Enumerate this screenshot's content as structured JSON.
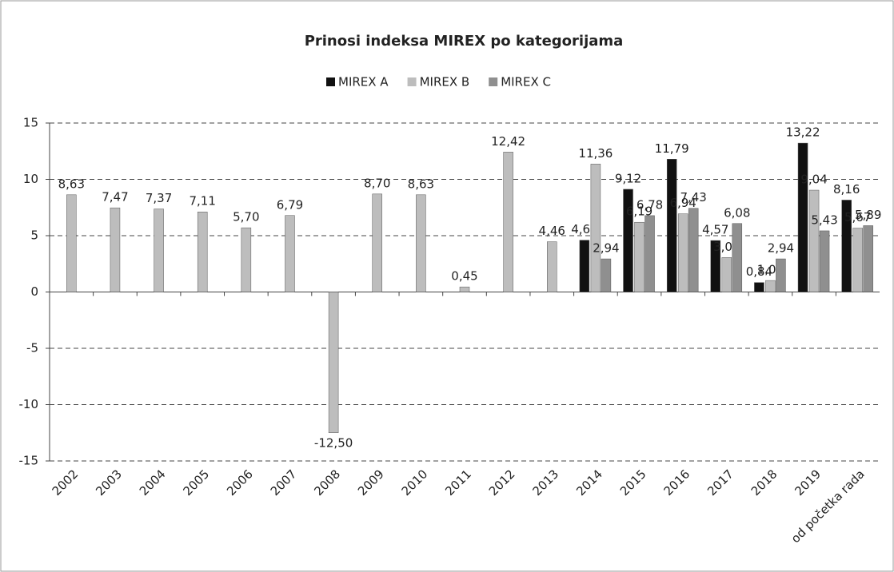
{
  "chart_data": {
    "type": "bar",
    "title": "Prinosi indeksa MIREX po kategorijama",
    "categories": [
      "2002",
      "2003",
      "2004",
      "2005",
      "2006",
      "2007",
      "2008",
      "2009",
      "2010",
      "2011",
      "2012",
      "2013",
      "2014",
      "2015",
      "2016",
      "2017",
      "2018",
      "2019",
      "od početka rada"
    ],
    "series": [
      {
        "name": "MIREX A",
        "color": "#111111",
        "values": [
          null,
          null,
          null,
          null,
          null,
          null,
          null,
          null,
          null,
          null,
          null,
          null,
          4.6,
          9.12,
          11.79,
          4.57,
          0.84,
          13.22,
          8.16
        ],
        "value_labels": [
          null,
          null,
          null,
          null,
          null,
          null,
          null,
          null,
          null,
          null,
          null,
          null,
          "4,60",
          "9,12",
          "11,79",
          "4,57",
          "0,84",
          "13,22",
          "8,16"
        ]
      },
      {
        "name": "MIREX B",
        "color": "#bdbdbd",
        "values": [
          8.63,
          7.47,
          7.37,
          7.11,
          5.7,
          6.79,
          -12.5,
          8.7,
          8.63,
          0.45,
          12.42,
          4.46,
          11.36,
          6.19,
          6.94,
          3.06,
          1.02,
          9.04,
          5.67
        ],
        "value_labels": [
          "8,63",
          "7,47",
          "7,37",
          "7,11",
          "5,70",
          "6,79",
          "-12,50",
          "8,70",
          "8,63",
          "0,45",
          "12,42",
          "4,46",
          "11,36",
          "6,19",
          "6,94",
          "3,06",
          "1,02",
          "9,04",
          "5,67"
        ]
      },
      {
        "name": "MIREX C",
        "color": "#8f8f8f",
        "values": [
          null,
          null,
          null,
          null,
          null,
          null,
          null,
          null,
          null,
          null,
          null,
          null,
          2.94,
          6.78,
          7.43,
          6.08,
          2.94,
          5.43,
          5.89
        ],
        "value_labels": [
          null,
          null,
          null,
          null,
          null,
          null,
          null,
          null,
          null,
          null,
          null,
          null,
          "2,94",
          "6,78",
          "7,43",
          "6,08",
          "2,94",
          "5,43",
          "5,89"
        ]
      }
    ],
    "ylim": [
      -15,
      15
    ],
    "yticks": [
      -15,
      -10,
      -5,
      0,
      5,
      10,
      15
    ],
    "grid": true,
    "legend": "top"
  }
}
